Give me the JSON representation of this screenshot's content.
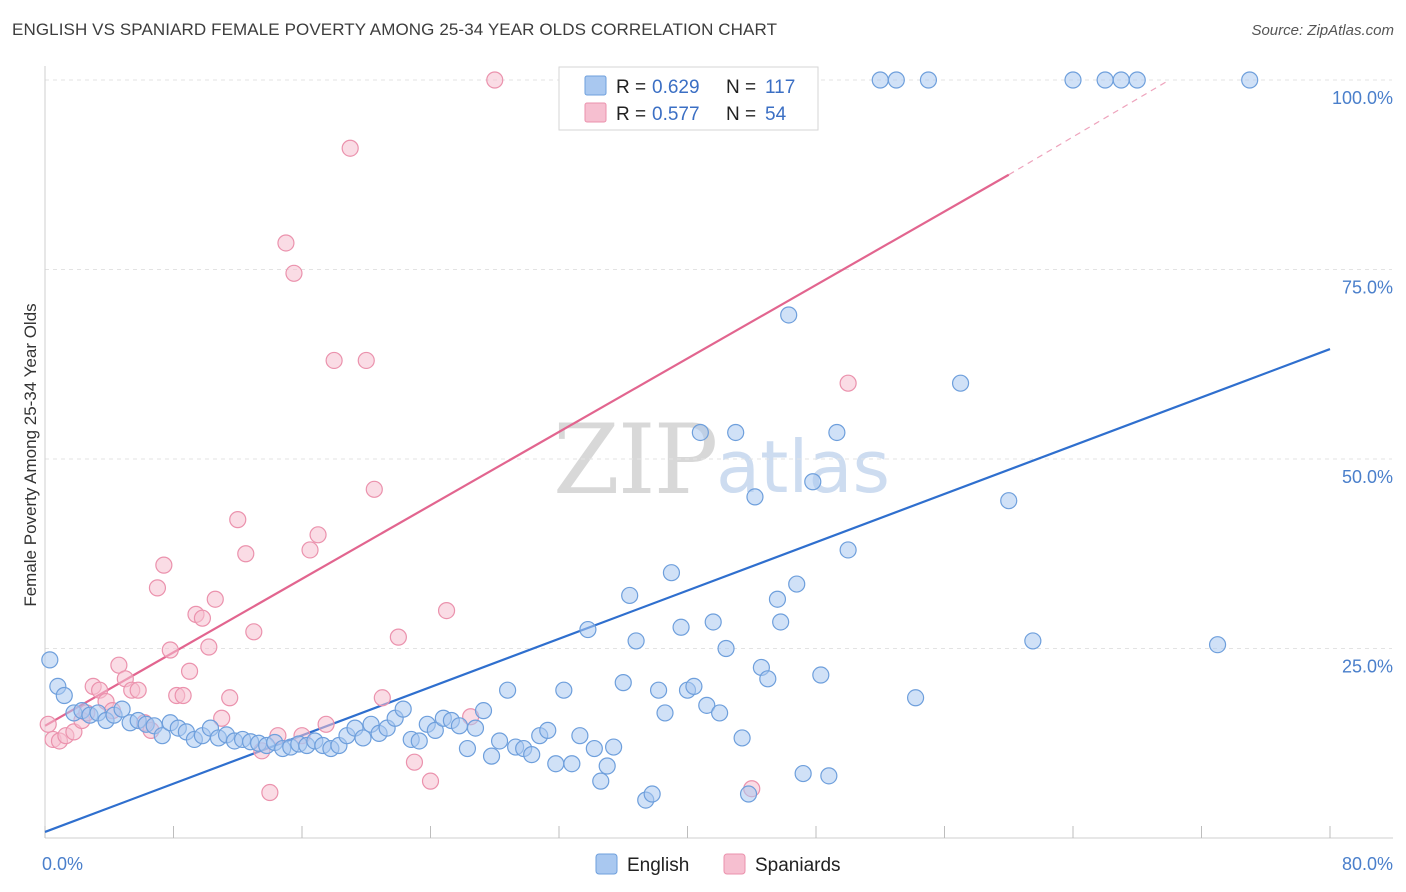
{
  "title": "ENGLISH VS SPANIARD FEMALE POVERTY AMONG 25-34 YEAR OLDS CORRELATION CHART",
  "source": "Source: ZipAtlas.com",
  "watermark": {
    "zip": "ZIP",
    "atlas": "atlas"
  },
  "legend": {
    "r_label": "R =",
    "n_label": "N =",
    "english": {
      "r": "0.629",
      "n": "117"
    },
    "spaniards": {
      "r": "0.577",
      "n": "54"
    }
  },
  "colors": {
    "english_fill": "#a9c8f0",
    "english_stroke": "#6e9fdc",
    "english_line": "#2f6fce",
    "spaniards_fill": "#f6bfd0",
    "spaniards_stroke": "#eb92ad",
    "spaniards_line": "#e2658f"
  },
  "chart_data": {
    "type": "scatter",
    "title": "ENGLISH VS SPANIARD FEMALE POVERTY AMONG 25-34 YEAR OLDS CORRELATION CHART",
    "xlabel": "",
    "ylabel": "Female Poverty Among 25-34 Year Olds",
    "xlim": [
      0,
      80
    ],
    "ylim": [
      0,
      100
    ],
    "x_tick_labels": [
      "0.0%",
      "80.0%"
    ],
    "y_ticks": [
      25,
      50,
      75,
      100
    ],
    "y_tick_labels": [
      "25.0%",
      "50.0%",
      "75.0%",
      "100.0%"
    ],
    "grid": true,
    "legend_position": "top-center",
    "series": [
      {
        "name": "English",
        "points": [
          [
            0.3,
            23.5
          ],
          [
            0.8,
            20
          ],
          [
            1.2,
            18.8
          ],
          [
            1.8,
            16.5
          ],
          [
            2.3,
            16.8
          ],
          [
            2.8,
            16.2
          ],
          [
            3.3,
            16.5
          ],
          [
            3.8,
            15.5
          ],
          [
            4.3,
            16.2
          ],
          [
            4.8,
            17
          ],
          [
            5.3,
            15.2
          ],
          [
            5.8,
            15.5
          ],
          [
            6.3,
            15
          ],
          [
            6.8,
            14.8
          ],
          [
            7.3,
            13.5
          ],
          [
            7.8,
            15.2
          ],
          [
            8.3,
            14.5
          ],
          [
            8.8,
            14
          ],
          [
            9.3,
            13
          ],
          [
            9.8,
            13.5
          ],
          [
            10.3,
            14.5
          ],
          [
            10.8,
            13.2
          ],
          [
            11.3,
            13.6
          ],
          [
            11.8,
            12.8
          ],
          [
            12.3,
            13
          ],
          [
            12.8,
            12.7
          ],
          [
            13.3,
            12.5
          ],
          [
            13.8,
            12.2
          ],
          [
            14.3,
            12.6
          ],
          [
            14.8,
            11.8
          ],
          [
            15.3,
            12
          ],
          [
            15.8,
            12.4
          ],
          [
            16.3,
            12.2
          ],
          [
            16.8,
            12.8
          ],
          [
            17.3,
            12.2
          ],
          [
            17.8,
            11.8
          ],
          [
            18.3,
            12.2
          ],
          [
            18.8,
            13.5
          ],
          [
            19.3,
            14.5
          ],
          [
            19.8,
            13.2
          ],
          [
            20.3,
            15
          ],
          [
            20.8,
            13.8
          ],
          [
            21.3,
            14.5
          ],
          [
            21.8,
            15.8
          ],
          [
            22.3,
            17
          ],
          [
            22.8,
            13
          ],
          [
            23.3,
            12.8
          ],
          [
            23.8,
            15
          ],
          [
            24.3,
            14.2
          ],
          [
            24.8,
            15.8
          ],
          [
            25.3,
            15.5
          ],
          [
            25.8,
            14.8
          ],
          [
            26.3,
            11.8
          ],
          [
            26.8,
            14.5
          ],
          [
            27.3,
            16.8
          ],
          [
            27.8,
            10.8
          ],
          [
            28.3,
            12.8
          ],
          [
            28.8,
            19.5
          ],
          [
            29.3,
            12
          ],
          [
            29.8,
            11.8
          ],
          [
            30.3,
            11
          ],
          [
            30.8,
            13.5
          ],
          [
            31.3,
            14.2
          ],
          [
            31.8,
            9.8
          ],
          [
            32.3,
            19.5
          ],
          [
            32.8,
            9.8
          ],
          [
            33.3,
            13.5
          ],
          [
            33.8,
            27.5
          ],
          [
            34.2,
            11.8
          ],
          [
            34.6,
            7.5
          ],
          [
            35.0,
            9.5
          ],
          [
            35.4,
            12
          ],
          [
            36.0,
            20.5
          ],
          [
            36.4,
            32
          ],
          [
            36.8,
            26
          ],
          [
            37.4,
            5
          ],
          [
            37.8,
            5.8
          ],
          [
            38.2,
            19.5
          ],
          [
            38.6,
            16.5
          ],
          [
            39.0,
            35
          ],
          [
            39.6,
            27.8
          ],
          [
            40.0,
            19.5
          ],
          [
            40.4,
            20
          ],
          [
            40.8,
            53.5
          ],
          [
            41.2,
            17.5
          ],
          [
            41.6,
            28.5
          ],
          [
            42.0,
            16.5
          ],
          [
            42.4,
            25
          ],
          [
            43.0,
            53.5
          ],
          [
            43.4,
            13.2
          ],
          [
            43.8,
            5.8
          ],
          [
            44.2,
            45
          ],
          [
            44.6,
            22.5
          ],
          [
            45.0,
            21
          ],
          [
            45.6,
            31.5
          ],
          [
            45.8,
            28.5
          ],
          [
            46.3,
            69
          ],
          [
            46.8,
            33.5
          ],
          [
            47.2,
            8.5
          ],
          [
            47.8,
            47
          ],
          [
            48.3,
            21.5
          ],
          [
            48.8,
            8.2
          ],
          [
            49.3,
            53.5
          ],
          [
            50.0,
            38
          ],
          [
            52.0,
            100
          ],
          [
            53.0,
            100
          ],
          [
            55.0,
            100
          ],
          [
            54.2,
            18.5
          ],
          [
            57.0,
            60
          ],
          [
            60.0,
            44.5
          ],
          [
            61.5,
            26
          ],
          [
            64.0,
            100
          ],
          [
            66.0,
            100
          ],
          [
            67.0,
            100
          ],
          [
            68.0,
            100
          ],
          [
            73.0,
            25.5
          ],
          [
            75.0,
            100
          ]
        ]
      },
      {
        "name": "Spaniards",
        "points": [
          [
            0.2,
            15
          ],
          [
            0.5,
            13
          ],
          [
            0.9,
            12.8
          ],
          [
            1.3,
            13.5
          ],
          [
            1.8,
            14
          ],
          [
            2.3,
            15.5
          ],
          [
            2.6,
            16.5
          ],
          [
            3.0,
            20
          ],
          [
            3.4,
            19.5
          ],
          [
            3.8,
            18
          ],
          [
            4.2,
            16.8
          ],
          [
            4.6,
            22.8
          ],
          [
            5.0,
            21
          ],
          [
            5.4,
            19.5
          ],
          [
            5.8,
            19.5
          ],
          [
            6.2,
            15.2
          ],
          [
            6.6,
            14.2
          ],
          [
            7.0,
            33
          ],
          [
            7.4,
            36
          ],
          [
            7.8,
            24.8
          ],
          [
            8.2,
            18.8
          ],
          [
            8.6,
            18.8
          ],
          [
            9.0,
            22
          ],
          [
            9.4,
            29.5
          ],
          [
            9.8,
            29
          ],
          [
            10.2,
            25.2
          ],
          [
            10.6,
            31.5
          ],
          [
            11.0,
            15.8
          ],
          [
            11.5,
            18.5
          ],
          [
            12.0,
            42
          ],
          [
            12.5,
            37.5
          ],
          [
            13.0,
            27.2
          ],
          [
            13.5,
            11.5
          ],
          [
            14.0,
            6
          ],
          [
            14.5,
            13.5
          ],
          [
            15.0,
            78.5
          ],
          [
            15.5,
            74.5
          ],
          [
            16.0,
            13.5
          ],
          [
            16.5,
            38
          ],
          [
            17.0,
            40
          ],
          [
            17.5,
            15
          ],
          [
            18.0,
            63
          ],
          [
            19.0,
            91
          ],
          [
            20.0,
            63
          ],
          [
            20.5,
            46
          ],
          [
            21.0,
            18.5
          ],
          [
            22.0,
            26.5
          ],
          [
            23.0,
            10
          ],
          [
            24.0,
            7.5
          ],
          [
            25.0,
            30
          ],
          [
            26.5,
            16
          ],
          [
            28.0,
            100
          ],
          [
            44.0,
            6.5
          ],
          [
            50.0,
            60
          ]
        ]
      }
    ],
    "trendlines": [
      {
        "name": "English",
        "from": [
          0,
          0.8
        ],
        "to": [
          80,
          64.5
        ]
      },
      {
        "name": "Spaniards",
        "from": [
          0,
          14.8
        ],
        "to": [
          60,
          87.5
        ],
        "dashed_to": [
          70,
          100
        ]
      }
    ]
  },
  "bottom_legend": {
    "english": "English",
    "spaniards": "Spaniards"
  }
}
